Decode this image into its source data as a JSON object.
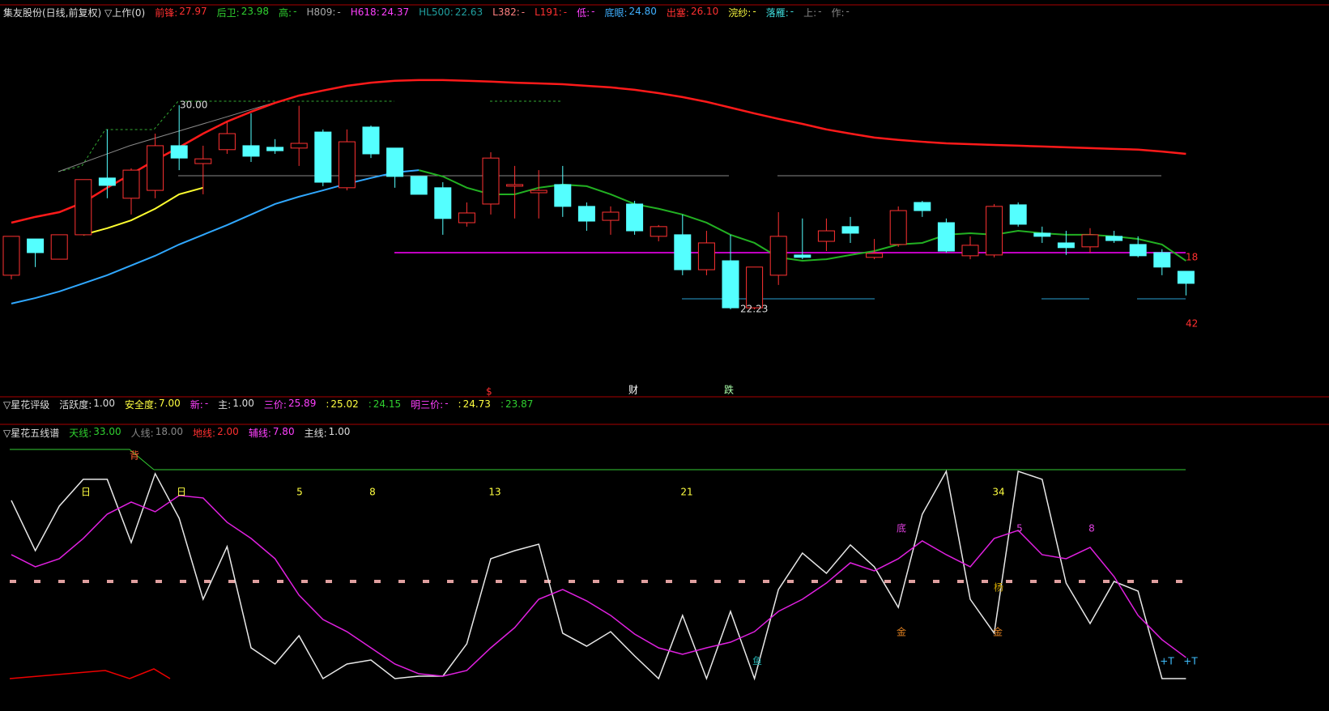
{
  "main_panel": {
    "title": "集友股份(日线,前复权) ▽上作(0)",
    "items": [
      {
        "label": "前锋:",
        "value": "27.97",
        "color": "#ff3030"
      },
      {
        "label": "后卫:",
        "value": "23.98",
        "color": "#30d030"
      },
      {
        "label": "高:",
        "value": "-",
        "color": "#30d030"
      },
      {
        "label": "H809:",
        "value": "-",
        "color": "#aaaaaa"
      },
      {
        "label": "H618:",
        "value": "24.37",
        "color": "#ff40ff"
      },
      {
        "label": "HL500:",
        "value": "22.63",
        "color": "#20a0a0"
      },
      {
        "label": "L382:",
        "value": "-",
        "color": "#ff8080"
      },
      {
        "label": "L191:",
        "value": "-",
        "color": "#ff3030"
      },
      {
        "label": "低:",
        "value": "-",
        "color": "#ff40ff"
      },
      {
        "label": "底眼:",
        "value": "24.80",
        "color": "#40b0ff"
      },
      {
        "label": "出塞:",
        "value": "26.10",
        "color": "#ff3030"
      },
      {
        "label": "浣纱:",
        "value": "-",
        "color": "#ffff40"
      },
      {
        "label": "落雁:",
        "value": "-",
        "color": "#40e0e0"
      },
      {
        "label": "上:",
        "value": "-",
        "color": "#888888"
      },
      {
        "label": "作:",
        "value": "-",
        "color": "#888888"
      }
    ],
    "annotations": [
      "30.00",
      "22.23",
      "18",
      "42",
      "$",
      "财",
      "跌"
    ]
  },
  "rating_panel": {
    "title": "▽星花评级",
    "items": [
      {
        "label": "活跃度:",
        "value": "1.00",
        "color": "#dddddd"
      },
      {
        "label": "安全度:",
        "value": "7.00",
        "color": "#ffff40"
      },
      {
        "label": "新:",
        "value": "-",
        "color": "#ff40ff"
      },
      {
        "label": "主:",
        "value": "1.00",
        "color": "#dddddd"
      },
      {
        "label": "三价:",
        "value": "25.89",
        "color": "#ff40ff"
      },
      {
        "label": ":",
        "value": "25.02",
        "color": "#ffff40"
      },
      {
        "label": ":",
        "value": "24.15",
        "color": "#30d030"
      },
      {
        "label": "明三价:",
        "value": "-",
        "color": "#ff40ff"
      },
      {
        "label": ":",
        "value": "24.73",
        "color": "#ffff40"
      },
      {
        "label": ":",
        "value": "23.87",
        "color": "#30d030"
      }
    ]
  },
  "staff_panel": {
    "title": "▽星花五线谱",
    "items": [
      {
        "label": "天线:",
        "value": "33.00",
        "color": "#30d030"
      },
      {
        "label": "人线:",
        "value": "18.00",
        "color": "#888888"
      },
      {
        "label": "地线:",
        "value": "2.00",
        "color": "#ff3030"
      },
      {
        "label": "辅线:",
        "value": "7.80",
        "color": "#ff40ff"
      },
      {
        "label": "主线:",
        "value": "1.00",
        "color": "#dddddd"
      }
    ],
    "annotations": [
      "背",
      "日",
      "日",
      "5",
      "8",
      "13",
      "21",
      "34",
      "底",
      "5",
      "8",
      "杨",
      "金",
      "金",
      "鱼",
      "+T",
      "+T"
    ]
  },
  "chart_data": [
    {
      "type": "candlestick",
      "ylim": [
        19.21,
        33.39
      ],
      "up_color": "#ff3232",
      "down_color": "#54ffff",
      "open": [
        23.53,
        24.91,
        24.14,
        25.07,
        27.23,
        26.46,
        26.76,
        28.46,
        27.78,
        28.31,
        28.46,
        28.4,
        28.37,
        28.98,
        26.86,
        29.17,
        28.37,
        27.29,
        26.86,
        25.53,
        26.24,
        26.92,
        26.67,
        26.98,
        26.15,
        25.62,
        26.24,
        25.01,
        25.07,
        23.74,
        24.08,
        22.29,
        23.53,
        24.3,
        24.82,
        25.38,
        24.21,
        24.7,
        26.3,
        25.53,
        24.27,
        24.3,
        26.21,
        25.13,
        24.76,
        24.61,
        25.01,
        24.7,
        24.39,
        23.68
      ],
      "close": [
        25.01,
        24.39,
        25.07,
        27.17,
        26.95,
        27.53,
        28.46,
        27.99,
        27.96,
        28.92,
        28.06,
        28.27,
        28.55,
        27.07,
        28.61,
        28.15,
        27.29,
        26.61,
        25.69,
        25.9,
        27.99,
        26.98,
        26.76,
        26.15,
        25.59,
        25.93,
        25.22,
        25.38,
        23.74,
        24.76,
        22.29,
        23.84,
        25.01,
        24.21,
        25.22,
        25.13,
        24.36,
        25.99,
        25.99,
        24.45,
        24.67,
        26.15,
        25.47,
        25.01,
        24.58,
        25.07,
        24.85,
        24.27,
        23.84,
        23.22
      ],
      "high": [
        25.01,
        24.91,
        25.07,
        27.17,
        29.08,
        27.6,
        28.92,
        30.0,
        28.46,
        29.38,
        29.69,
        28.71,
        29.98,
        29.08,
        29.08,
        29.23,
        28.37,
        27.29,
        27.07,
        26.3,
        28.21,
        27.69,
        27.53,
        27.69,
        26.3,
        26.15,
        26.36,
        25.44,
        25.84,
        25.22,
        25.07,
        23.84,
        25.93,
        25.69,
        25.69,
        25.75,
        24.91,
        26.15,
        26.36,
        25.69,
        25.01,
        26.24,
        26.3,
        25.38,
        25.22,
        25.32,
        25.22,
        25.01,
        24.52,
        23.68
      ],
      "low": [
        23.37,
        23.84,
        24.14,
        25.07,
        26.46,
        25.84,
        26.46,
        27.53,
        26.61,
        28.15,
        27.84,
        28.15,
        27.69,
        26.92,
        26.76,
        27.99,
        26.86,
        26.61,
        25.07,
        25.38,
        25.84,
        25.69,
        25.69,
        25.75,
        25.22,
        25.07,
        25.07,
        24.82,
        23.53,
        23.53,
        22.23,
        22.23,
        23.16,
        24.14,
        24.45,
        24.76,
        24.14,
        24.61,
        25.75,
        24.39,
        24.14,
        24.21,
        25.38,
        24.76,
        24.3,
        24.39,
        24.76,
        24.21,
        23.53,
        22.76
      ],
      "series": [
        {
          "color": "#ff1a1a",
          "values": [
            25.53,
            25.75,
            25.93,
            26.3,
            26.86,
            27.38,
            27.91,
            28.4,
            28.92,
            29.38,
            29.75,
            30.09,
            30.37,
            30.56,
            30.74,
            30.86,
            30.93,
            30.96,
            30.96,
            30.93,
            30.9,
            30.86,
            30.83,
            30.8,
            30.74,
            30.68,
            30.59,
            30.46,
            30.31,
            30.13,
            29.91,
            29.69,
            29.48,
            29.29,
            29.08,
            28.92,
            28.77,
            28.68,
            28.61,
            28.55,
            28.52,
            28.49,
            28.46,
            28.43,
            28.4,
            28.37,
            28.34,
            28.31,
            28.24,
            28.15
          ]
        },
        {
          "color": "#30a8ff",
          "values": [
            22.45,
            22.66,
            22.91,
            23.22,
            23.53,
            23.9,
            24.27,
            24.7,
            25.07,
            25.44,
            25.84,
            26.24,
            26.52,
            26.76,
            27.01,
            27.23,
            27.44,
            27.53,
            null,
            null,
            null,
            null,
            null,
            null,
            null,
            null,
            null,
            null,
            null,
            null,
            null,
            null,
            null,
            null,
            null,
            null,
            null,
            null,
            null,
            null,
            null,
            null,
            null,
            null,
            null,
            null,
            null,
            null,
            null,
            null
          ]
        },
        {
          "color": "#22b022",
          "values": [
            null,
            null,
            null,
            null,
            null,
            null,
            null,
            null,
            null,
            null,
            null,
            null,
            null,
            null,
            null,
            null,
            null,
            27.53,
            27.29,
            26.86,
            26.61,
            26.61,
            26.86,
            26.98,
            26.92,
            26.61,
            26.24,
            26.06,
            25.84,
            25.53,
            25.07,
            24.76,
            24.21,
            24.08,
            24.14,
            24.3,
            24.45,
            24.7,
            24.76,
            25.07,
            25.13,
            25.07,
            25.22,
            25.13,
            25.07,
            25.07,
            25.01,
            24.91,
            24.7,
            24.08
          ]
        },
        {
          "color": "#ffff30",
          "values": [
            null,
            null,
            null,
            25.07,
            25.32,
            25.62,
            26.06,
            26.61,
            26.86,
            null,
            null,
            null,
            null,
            null,
            null,
            null,
            null,
            null,
            null,
            null,
            null,
            null,
            null,
            null,
            null,
            null,
            null,
            null,
            null,
            null,
            null,
            null,
            null,
            null,
            null,
            null,
            null,
            null,
            null,
            null,
            null,
            null,
            null,
            null,
            null,
            null,
            null,
            null,
            null,
            null
          ]
        }
      ]
    },
    {
      "type": "line",
      "ylim": [
        4.96,
        36.8
      ],
      "series": [
        {
          "color": "#e8e8e8",
          "values": [
            28.87,
            22.13,
            28.11,
            31.7,
            31.7,
            23.22,
            32.46,
            26.48,
            15.61,
            22.68,
            9.09,
            6.92,
            10.72,
            4.96,
            6.92,
            7.46,
            4.96,
            5.29,
            5.29,
            9.63,
            21.05,
            22.13,
            23.0,
            11.05,
            9.31,
            11.26,
            8.0,
            4.96,
            13.44,
            4.96,
            13.98,
            4.96,
            16.92,
            21.81,
            19.09,
            22.9,
            19.96,
            14.52,
            27.02,
            32.78,
            15.61,
            11.05,
            32.78,
            31.7,
            17.78,
            12.35,
            18.0,
            16.7,
            4.96,
            4.96
          ]
        },
        {
          "color": "#e020e0",
          "values": [
            21.59,
            19.96,
            21.05,
            23.77,
            27.03,
            28.66,
            27.35,
            29.53,
            29.2,
            25.94,
            23.77,
            21.05,
            16.16,
            12.89,
            11.26,
            9.09,
            6.92,
            5.61,
            5.29,
            6.05,
            9.09,
            11.81,
            15.61,
            16.92,
            15.39,
            13.44,
            10.94,
            9.09,
            8.22,
            9.09,
            9.85,
            11.26,
            13.98,
            15.61,
            17.78,
            20.5,
            19.42,
            21.05,
            23.44,
            21.59,
            19.96,
            23.77,
            24.85,
            21.59,
            21.05,
            22.57,
            18.65,
            13.44,
            10.18,
            7.79
          ]
        }
      ]
    }
  ]
}
